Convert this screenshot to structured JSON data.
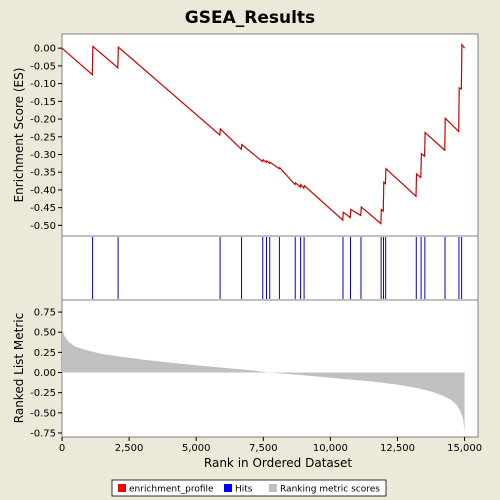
{
  "chart_data": {
    "type": "line",
    "title": "GSEA_Results",
    "xlabel": "Rank in Ordered Dataset",
    "xlim": [
      0,
      15500
    ],
    "xticks": [
      0,
      2500,
      5000,
      7500,
      10000,
      12500,
      15000
    ],
    "xtick_labels": [
      "0",
      "2,500",
      "5,000",
      "7,500",
      "10,000",
      "12,500",
      "15,000"
    ],
    "es_panel": {
      "ylabel": "Enrichment Score (ES)",
      "ylim": [
        -0.53,
        0.04
      ],
      "yticks": [
        0.0,
        -0.05,
        -0.1,
        -0.15,
        -0.2,
        -0.25,
        -0.3,
        -0.35,
        -0.4,
        -0.45,
        -0.5
      ],
      "ytick_labels": [
        "0.00",
        "-0.05",
        "-0.10",
        "-0.15",
        "-0.20",
        "-0.25",
        "-0.30",
        "-0.35",
        "-0.40",
        "-0.45",
        "-0.50"
      ],
      "series_name": "enrichment_profile",
      "color": "#cc0000",
      "x": [
        0,
        1130,
        1150,
        2080,
        2100,
        5880,
        5900,
        6680,
        6700,
        7470,
        7490,
        7610,
        7630,
        7730,
        7750,
        8090,
        8110,
        8680,
        8700,
        8880,
        8900,
        9010,
        9030,
        10460,
        10480,
        10740,
        10760,
        11130,
        11150,
        11880,
        11900,
        11970,
        11990,
        12050,
        12070,
        13190,
        13210,
        13370,
        13390,
        13510,
        13530,
        14260,
        14280,
        14780,
        14800,
        14880,
        14900,
        15000
      ],
      "y": [
        0.0,
        -0.075,
        0.005,
        -0.055,
        0.003,
        -0.245,
        -0.228,
        -0.285,
        -0.272,
        -0.32,
        -0.315,
        -0.322,
        -0.318,
        -0.325,
        -0.322,
        -0.34,
        -0.337,
        -0.385,
        -0.38,
        -0.392,
        -0.385,
        -0.395,
        -0.388,
        -0.485,
        -0.463,
        -0.478,
        -0.455,
        -0.472,
        -0.448,
        -0.495,
        -0.455,
        -0.46,
        -0.378,
        -0.382,
        -0.34,
        -0.418,
        -0.355,
        -0.365,
        -0.298,
        -0.305,
        -0.238,
        -0.288,
        -0.198,
        -0.235,
        -0.112,
        -0.115,
        0.01,
        0.0
      ]
    },
    "hits_panel": {
      "series_name": "Hits",
      "color": "#0000cc",
      "positions": [
        1140,
        2090,
        5890,
        6690,
        7480,
        7620,
        7740,
        8100,
        8690,
        8890,
        9020,
        10470,
        10750,
        11140,
        11890,
        11980,
        12060,
        13200,
        13380,
        13520,
        14270,
        14790,
        14890
      ]
    },
    "ranking_panel": {
      "ylabel": "Ranked List Metric",
      "ylim": [
        -0.8,
        0.9
      ],
      "yticks": [
        0.75,
        0.5,
        0.25,
        0.0,
        -0.25,
        -0.5,
        -0.75
      ],
      "ytick_labels": [
        "0.75",
        "0.50",
        "0.25",
        "0.00",
        "-0.25",
        "-0.50",
        "-0.75"
      ],
      "series_name": "Ranking metric scores",
      "color": "#c0c0c0",
      "x": [
        0,
        100,
        250,
        500,
        1000,
        1500,
        2000,
        3000,
        4000,
        5000,
        6000,
        7000,
        7700,
        8500,
        9500,
        10500,
        11500,
        12500,
        13200,
        13800,
        14200,
        14500,
        14700,
        14850,
        14950,
        15000
      ],
      "y": [
        0.55,
        0.45,
        0.38,
        0.32,
        0.27,
        0.23,
        0.205,
        0.16,
        0.125,
        0.09,
        0.06,
        0.03,
        0.0,
        -0.02,
        -0.05,
        -0.08,
        -0.11,
        -0.15,
        -0.19,
        -0.24,
        -0.29,
        -0.34,
        -0.4,
        -0.48,
        -0.58,
        -0.75
      ]
    },
    "legend": {
      "placement": "bottom",
      "entries": [
        {
          "label": "enrichment_profile",
          "color": "#ff0000"
        },
        {
          "label": "Hits",
          "color": "#0000ff"
        },
        {
          "label": "Ranking metric scores",
          "color": "#c0c0c0"
        }
      ]
    }
  }
}
